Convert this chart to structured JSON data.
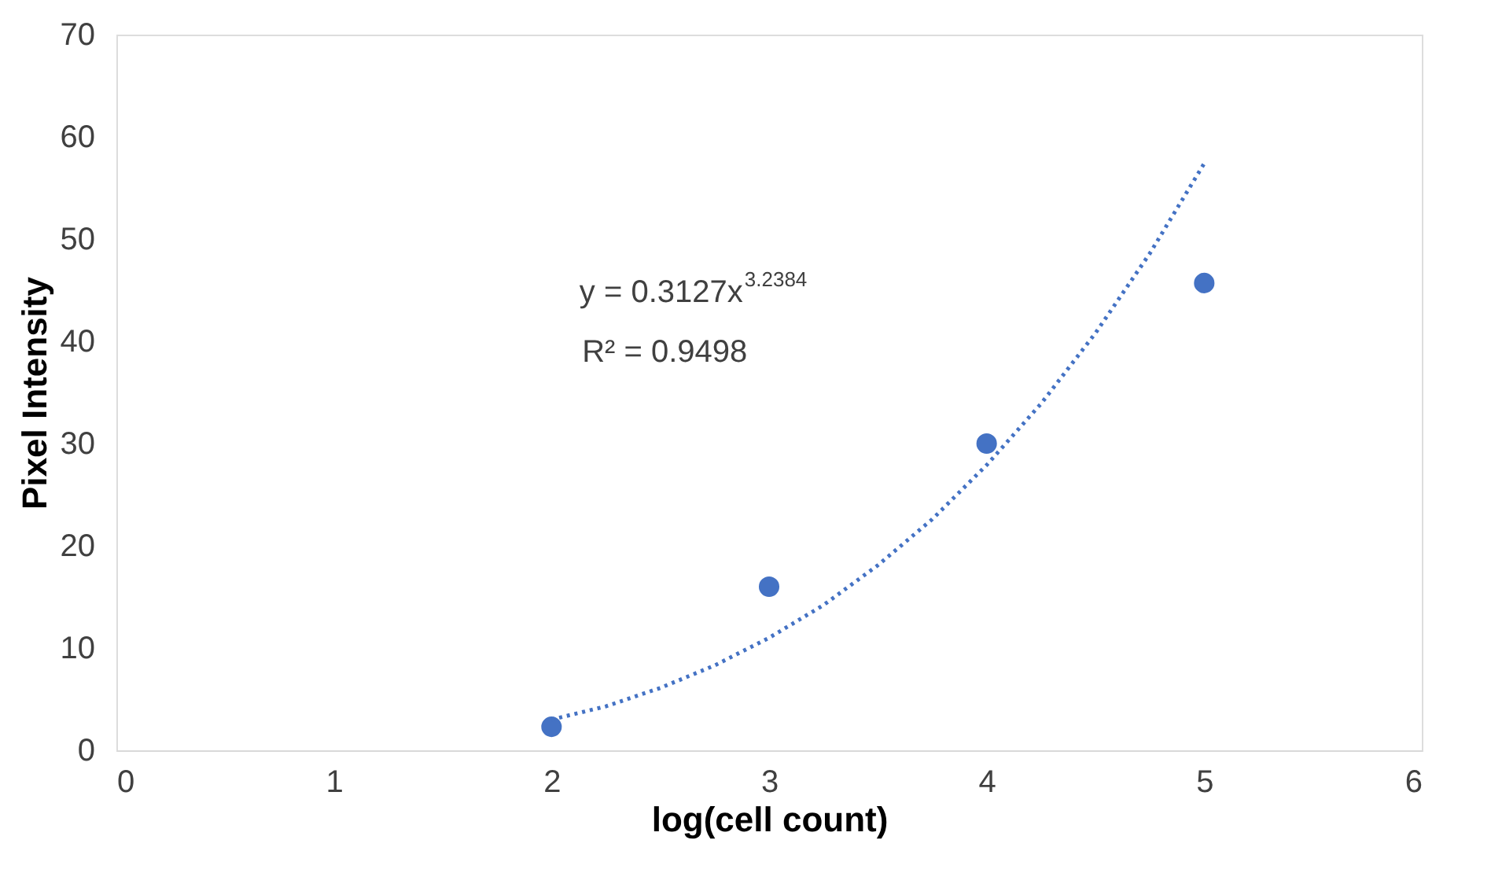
{
  "chart_data": {
    "type": "scatter",
    "xlabel": "log(cell count)",
    "ylabel": "Pixel Intensity",
    "xlim": [
      0,
      6
    ],
    "xticks": [
      0,
      1,
      2,
      3,
      4,
      5,
      6
    ],
    "ylim": [
      0,
      70
    ],
    "yticks": [
      0,
      10,
      20,
      30,
      40,
      50,
      60,
      70
    ],
    "grid": false,
    "annotations": [
      "y = 0.3127x$^{3.2384}$",
      "R² = 0.9498"
    ],
    "series": [
      {
        "color": "#4472c4",
        "marker": "circle",
        "x": [
          2,
          3,
          4,
          5
        ],
        "values": [
          2.3,
          16,
          30,
          45.7
        ]
      },
      {
        "type": "line",
        "color": "#4472c4",
        "marker": "none",
        "line_style": "dotted",
        "x": [
          2,
          2.25,
          2.5,
          2.75,
          3,
          3.25,
          3.5,
          3.75,
          4,
          4.25,
          4.5,
          4.75,
          5
        ],
        "values": [
          3,
          4.3,
          6.1,
          8.3,
          11,
          14.2,
          18.1,
          22.6,
          27.9,
          33.9,
          40.8,
          48.6,
          57.4
        ]
      }
    ]
  }
}
